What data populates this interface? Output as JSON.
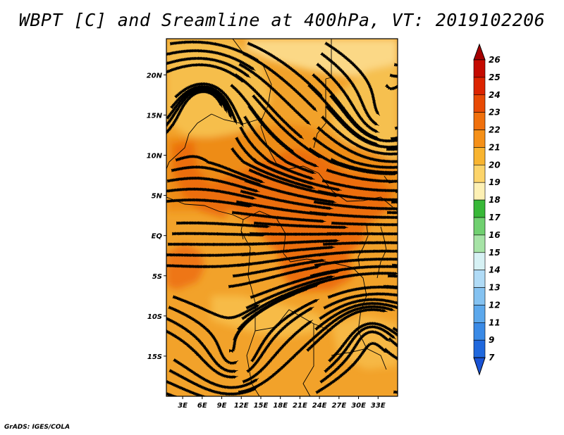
{
  "title": "WBPT [C] and Sreamline at 400hPa, VT: 2019102206",
  "footer": "GrADS: IGES/COLA",
  "map": {
    "lon_range": [
      0.5,
      36
    ],
    "lat_range": [
      -20,
      24.5
    ],
    "lon_ticks": [
      "3E",
      "6E",
      "9E",
      "12E",
      "15E",
      "18E",
      "21E",
      "24E",
      "27E",
      "30E",
      "33E"
    ],
    "lon_tick_values": [
      3,
      6,
      9,
      12,
      15,
      18,
      21,
      24,
      27,
      30,
      33
    ],
    "lat_ticks": [
      "20N",
      "15N",
      "10N",
      "5N",
      "EQ",
      "5S",
      "10S",
      "15S"
    ],
    "lat_tick_values": [
      20,
      15,
      10,
      5,
      0,
      -5,
      -10,
      -15
    ],
    "base_color": "#f2a22a",
    "regions": [
      {
        "name": "dark-core-band",
        "value": 22.5,
        "color": "#ec6e10"
      },
      {
        "name": "dark-west-arm",
        "value": 22.3,
        "color": "#ec6e10"
      },
      {
        "name": "dark-southwest-coast",
        "value": 22.2,
        "color": "#ee7612"
      },
      {
        "name": "mid-orange-bulge",
        "value": 21.5,
        "color": "#ee8c18"
      },
      {
        "name": "light-north-west",
        "value": 20.2,
        "color": "#f6be4c"
      },
      {
        "name": "light-north-east",
        "value": 20.2,
        "color": "#f6c050"
      },
      {
        "name": "light-north-top",
        "value": 19.3,
        "color": "#fbd886"
      },
      {
        "name": "light-south-band",
        "value": 20.3,
        "color": "#f7bb46"
      },
      {
        "name": "light-south-east",
        "value": 20.3,
        "color": "#f6b845"
      }
    ]
  },
  "colorbar": {
    "labels": [
      "26",
      "25",
      "24",
      "23",
      "22",
      "21",
      "20",
      "19",
      "18",
      "17",
      "16",
      "15",
      "14",
      "13",
      "12",
      "11",
      "9",
      "7"
    ],
    "colors": [
      "#a50000",
      "#c40a00",
      "#dc2400",
      "#e84a04",
      "#f0700c",
      "#f59018",
      "#f8b430",
      "#fcd46a",
      "#fdf0b4",
      "#38b838",
      "#70d070",
      "#a6e3a6",
      "#d6f1f4",
      "#b0dbf6",
      "#84c2f1",
      "#5ca8ec",
      "#3a8ae6",
      "#2068dd",
      "#1a53d5"
    ]
  }
}
